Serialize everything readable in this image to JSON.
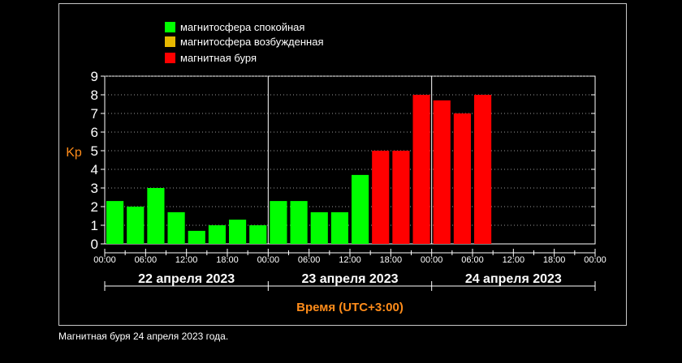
{
  "legend": [
    {
      "label": "магнитосфера спокойная",
      "color": "#00ff00"
    },
    {
      "label": "магнитосфера возбужденная",
      "color": "#e6b800"
    },
    {
      "label": "магнитная буря",
      "color": "#ff0000"
    }
  ],
  "caption": "Магнитная буря 24 апреля 2023 года.",
  "chart_data": {
    "type": "bar",
    "ylabel": "Kp",
    "xlabel": "Время (UTC+3:00)",
    "ylim": [
      0,
      9
    ],
    "yticks": [
      0,
      1,
      2,
      3,
      4,
      5,
      6,
      7,
      8,
      9
    ],
    "grid": true,
    "days": [
      "22 апреля 2023",
      "23 апреля 2023",
      "24 апреля 2023"
    ],
    "time_ticks": [
      "00:00",
      "06:00",
      "12:00",
      "18:00"
    ],
    "end_tick": "00:00",
    "values": [
      2.3,
      2.0,
      3.0,
      1.7,
      0.7,
      1.0,
      1.3,
      1.0,
      2.3,
      2.3,
      1.7,
      1.7,
      3.7,
      5.0,
      5.0,
      8.0,
      7.7,
      7.0,
      8.0
    ],
    "colors": {
      "quiet": "#00ff00",
      "active": "#e6b800",
      "storm": "#ff0000"
    },
    "thresholds": {
      "storm": 5
    }
  }
}
